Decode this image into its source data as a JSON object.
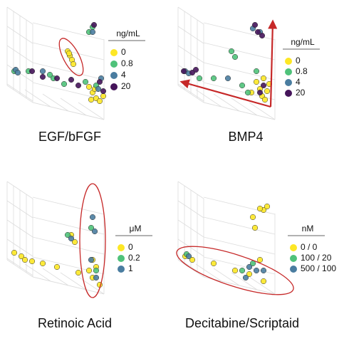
{
  "chart_data": [
    {
      "type": "scatter",
      "title": "EGF/bFGF",
      "legend_title": "ng/mL",
      "xlim": [
        0,
        200
      ],
      "ylim": [
        0,
        170
      ],
      "series": [
        {
          "name": "0",
          "color": "#fde725",
          "x": [
            90,
            93,
            96,
            98,
            92,
            120,
            125,
            130,
            135,
            123,
            140,
            128
          ],
          "values": [
            103,
            97,
            91,
            85,
            100,
            53,
            45,
            37,
            33,
            35,
            40,
            50
          ]
        },
        {
          "name": "0.8",
          "color": "#4fc27a",
          "x": [
            125,
            120,
            65,
            70,
            85,
            115,
            130,
            15,
            35
          ],
          "values": [
            137,
            130,
            70,
            65,
            57,
            60,
            55,
            75,
            75
          ]
        },
        {
          "name": "4",
          "color": "#4a7da0",
          "x": [
            125,
            17,
            20,
            55,
            133,
            137
          ],
          "values": [
            130,
            77,
            73,
            75,
            50,
            65
          ]
        },
        {
          "name": "20",
          "color": "#45145a",
          "x": [
            127,
            40,
            55,
            75,
            95,
            105,
            135,
            140
          ],
          "values": [
            140,
            75,
            67,
            65,
            63,
            55,
            60,
            47
          ]
        }
      ]
    },
    {
      "type": "scatter",
      "title": "BMP4",
      "legend_title": "ng/mL",
      "xlim": [
        0,
        200
      ],
      "ylim": [
        0,
        170
      ],
      "series": [
        {
          "name": "0",
          "color": "#fde725",
          "x": [
            115,
            120,
            123,
            127,
            130,
            125,
            133,
            108
          ],
          "values": [
            60,
            50,
            40,
            35,
            47,
            65,
            57,
            45
          ]
        },
        {
          "name": "0.8",
          "color": "#4fc27a",
          "x": [
            80,
            85,
            95,
            103,
            55,
            35,
            115
          ],
          "values": [
            103,
            95,
            55,
            45,
            65,
            65,
            75
          ]
        },
        {
          "name": "4",
          "color": "#4a7da0",
          "x": [
            110,
            120,
            15,
            20,
            75
          ],
          "values": [
            135,
            130,
            75,
            72,
            65
          ]
        },
        {
          "name": "20",
          "color": "#45145a",
          "x": [
            113,
            117,
            123,
            13,
            25,
            30,
            120,
            125
          ],
          "values": [
            140,
            130,
            125,
            75,
            73,
            77,
            45,
            55
          ]
        }
      ]
    },
    {
      "type": "scatter",
      "title": "Retinoic Acid",
      "legend_title": "μM",
      "xlim": [
        0,
        200
      ],
      "ylim": [
        0,
        170
      ],
      "series": [
        {
          "name": "0",
          "color": "#fde725",
          "x": [
            15,
            25,
            30,
            40,
            55,
            75,
            105,
            125,
            135,
            120,
            125,
            130,
            95,
            100
          ],
          "values": [
            65,
            60,
            55,
            53,
            50,
            45,
            37,
            30,
            20,
            40,
            55,
            45,
            90,
            80
          ]
        },
        {
          "name": "0.2",
          "color": "#4fc27a",
          "x": [
            123,
            90,
            130
          ],
          "values": [
            100,
            90,
            40
          ]
        },
        {
          "name": "1",
          "color": "#4a7da0",
          "x": [
            95,
            125,
            128,
            123,
            130
          ],
          "values": [
            85,
            115,
            95,
            55,
            30
          ]
        }
      ]
    },
    {
      "type": "scatter",
      "title": "Decitabine/Scriptaid",
      "legend_title": "nM",
      "xlim": [
        0,
        200
      ],
      "ylim": [
        0,
        170
      ],
      "series": [
        {
          "name": "0 / 0",
          "color": "#fde725",
          "x": [
            125,
            130,
            120,
            110,
            113,
            15,
            25,
            55,
            85,
            105,
            125,
            120
          ],
          "values": [
            125,
            130,
            127,
            115,
            100,
            60,
            55,
            50,
            40,
            35,
            25,
            55
          ]
        },
        {
          "name": "100 / 20",
          "color": "#4fc27a",
          "x": [
            17,
            95,
            110
          ],
          "values": [
            63,
            40,
            50
          ]
        },
        {
          "name": "500 / 100",
          "color": "#4a7da0",
          "x": [
            20,
            105,
            115,
            100,
            125
          ],
          "values": [
            60,
            45,
            40,
            30,
            40
          ]
        }
      ]
    }
  ]
}
